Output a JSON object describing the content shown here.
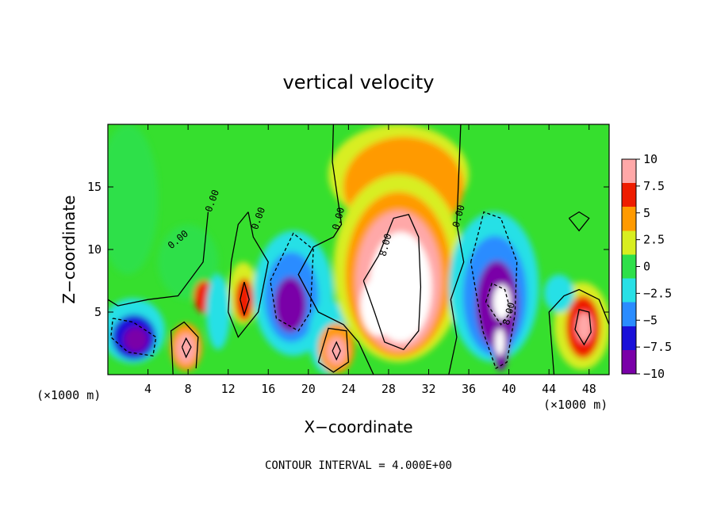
{
  "chart_data": {
    "type": "heatmap",
    "title": "vertical velocity",
    "xlabel": "X−coordinate",
    "ylabel": "Z−coordinate",
    "x_units_left": "(×1000 m)",
    "x_units_right": "(×1000 m)",
    "xlim": [
      0,
      50
    ],
    "ylim": [
      0,
      20
    ],
    "x_ticks": [
      4,
      8,
      12,
      16,
      20,
      24,
      28,
      32,
      36,
      40,
      44,
      48
    ],
    "y_ticks": [
      5,
      10,
      15
    ],
    "colorbar": {
      "range": [
        -10,
        10
      ],
      "ticks": [
        10,
        7.5,
        5,
        2.5,
        0,
        -2.5,
        -5,
        -7.5,
        -10
      ],
      "tick_labels": [
        "10",
        "7.5",
        "5",
        "2.5",
        "0",
        "−2.5",
        "−5",
        "−7.5",
        "−10"
      ],
      "colors": [
        "#7a00a8",
        "#1a10d8",
        "#2a8cff",
        "#28e0e6",
        "#2ee04a",
        "#d8ee20",
        "#ff9a00",
        "#ee1c00",
        "#ffa8a8"
      ]
    },
    "contour_labels": [
      "0.00",
      "0.00",
      "0.00",
      "0.00",
      "0.00",
      "8.00",
      "8.00"
    ],
    "contour_interval_text": "CONTOUR INTERVAL = 4.000E+00",
    "features": [
      {
        "x": 2.5,
        "z": 3,
        "w": -8
      },
      {
        "x": 7.8,
        "z": 2,
        "w": 8.5
      },
      {
        "x": 9.6,
        "z": 6.2,
        "w": 5.5
      },
      {
        "x": 13.6,
        "z": 6,
        "w": 7
      },
      {
        "x": 18.2,
        "z": 5.5,
        "w": -10
      },
      {
        "x": 22.8,
        "z": 1.9,
        "w": 8
      },
      {
        "x": 29,
        "z": 6,
        "w": 13
      },
      {
        "x": 38.8,
        "z": 5.5,
        "w": -10
      },
      {
        "x": 39.2,
        "z": 2.5,
        "w": -8
      },
      {
        "x": 47.4,
        "z": 3.8,
        "w": 9.5
      }
    ]
  }
}
